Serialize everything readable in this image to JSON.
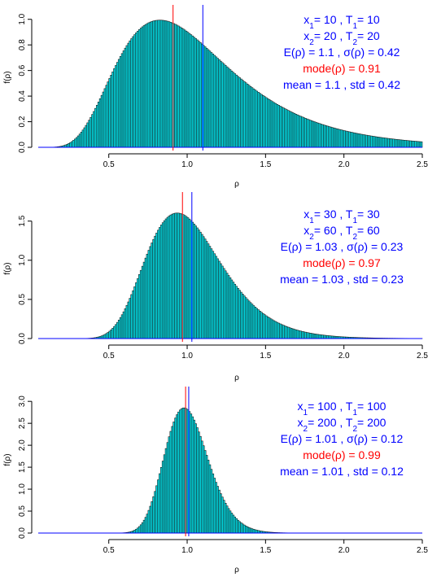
{
  "colors": {
    "bar_fill": "#00e5ee",
    "bar_stroke": "#1a1a1a",
    "mean_line": "#0000ff",
    "mode_line": "#ff0000",
    "text_blue": "#0000ff",
    "text_red": "#ff0000",
    "axis": "#000000"
  },
  "chart_data": [
    {
      "type": "bar",
      "bins": "histogram",
      "xlabel": "ρ",
      "ylabel": "f(ρ)",
      "xlim": [
        0.05,
        2.5
      ],
      "ylim": [
        0,
        1.1
      ],
      "xticks": [
        0.5,
        1.0,
        1.5,
        2.0,
        2.5
      ],
      "xtick_labels": [
        "0.5",
        "1.0",
        "1.5",
        "2.0",
        "2.5"
      ],
      "yticks": [
        0,
        0.2,
        0.4,
        0.6,
        0.8,
        1.0
      ],
      "ytick_labels": [
        "0.0",
        "0.2",
        "0.4",
        "0.6",
        "0.8",
        "1.0"
      ],
      "params": {
        "a": 10,
        "b": 20,
        "c": 10,
        "d": 20
      },
      "mode_value": 0.91,
      "mean_value": 1.1,
      "legend": {
        "line1": {
          "x_label": "x",
          "x_sub": "1",
          "x_val": "= 10 , ",
          "t_label": "T",
          "t_sub": "1",
          "t_val": "= 10"
        },
        "line2": {
          "x_label": "x",
          "x_sub": "2",
          "x_val": "= 20 , ",
          "t_label": "T",
          "t_sub": "2",
          "t_val": "= 20"
        },
        "line3": "E(ρ) = 1.1 , σ(ρ) = 0.42",
        "line4": "mode(ρ) = 0.91",
        "line5": "mean = 1.1 , std = 0.42"
      }
    },
    {
      "type": "bar",
      "bins": "histogram",
      "xlabel": "ρ",
      "ylabel": "f(ρ)",
      "xlim": [
        0.05,
        2.5
      ],
      "ylim": [
        0,
        1.85
      ],
      "xticks": [
        0.5,
        1.0,
        1.5,
        2.0,
        2.5
      ],
      "xtick_labels": [
        "0.5",
        "1.0",
        "1.5",
        "2.0",
        "2.5"
      ],
      "yticks": [
        0,
        0.5,
        1.0,
        1.5
      ],
      "ytick_labels": [
        "0.0",
        "0.5",
        "1.0",
        "1.5"
      ],
      "params": {
        "a": 30,
        "b": 60,
        "c": 30,
        "d": 60
      },
      "mode_value": 0.97,
      "mean_value": 1.03,
      "legend": {
        "line1": {
          "x_label": "x",
          "x_sub": "1",
          "x_val": "= 30 , ",
          "t_label": "T",
          "t_sub": "1",
          "t_val": "= 30"
        },
        "line2": {
          "x_label": "x",
          "x_sub": "2",
          "x_val": "= 60 , ",
          "t_label": "T",
          "t_sub": "2",
          "t_val": "= 60"
        },
        "line3": "E(ρ) = 1.03 , σ(ρ) = 0.23",
        "line4": "mode(ρ) = 0.97",
        "line5": "mean = 1.03 , std = 0.23"
      }
    },
    {
      "type": "bar",
      "bins": "histogram",
      "xlabel": "ρ",
      "ylabel": "f(ρ)",
      "xlim": [
        0.05,
        2.5
      ],
      "ylim": [
        0,
        3.3
      ],
      "xticks": [
        0.5,
        1.0,
        1.5,
        2.0,
        2.5
      ],
      "xtick_labels": [
        "0.5",
        "1.0",
        "1.5",
        "2.0",
        "2.5"
      ],
      "yticks": [
        0,
        0.5,
        1.0,
        1.5,
        2.0,
        2.5,
        3.0
      ],
      "ytick_labels": [
        "0.0",
        "0.5",
        "1.0",
        "1.5",
        "2.0",
        "2.5",
        "3.0"
      ],
      "params": {
        "a": 100,
        "b": 200,
        "c": 100,
        "d": 200
      },
      "mode_value": 0.99,
      "mean_value": 1.01,
      "legend": {
        "line1": {
          "x_label": "x",
          "x_sub": "1",
          "x_val": "= 100 , ",
          "t_label": "T",
          "t_sub": "1",
          "t_val": "= 100"
        },
        "line2": {
          "x_label": "x",
          "x_sub": "2",
          "x_val": "= 200 , ",
          "t_label": "T",
          "t_sub": "2",
          "t_val": "= 200"
        },
        "line3": "E(ρ) = 1.01 , σ(ρ) = 0.12",
        "line4": "mode(ρ) = 0.99",
        "line5": "mean = 1.01 , std = 0.12"
      }
    }
  ]
}
